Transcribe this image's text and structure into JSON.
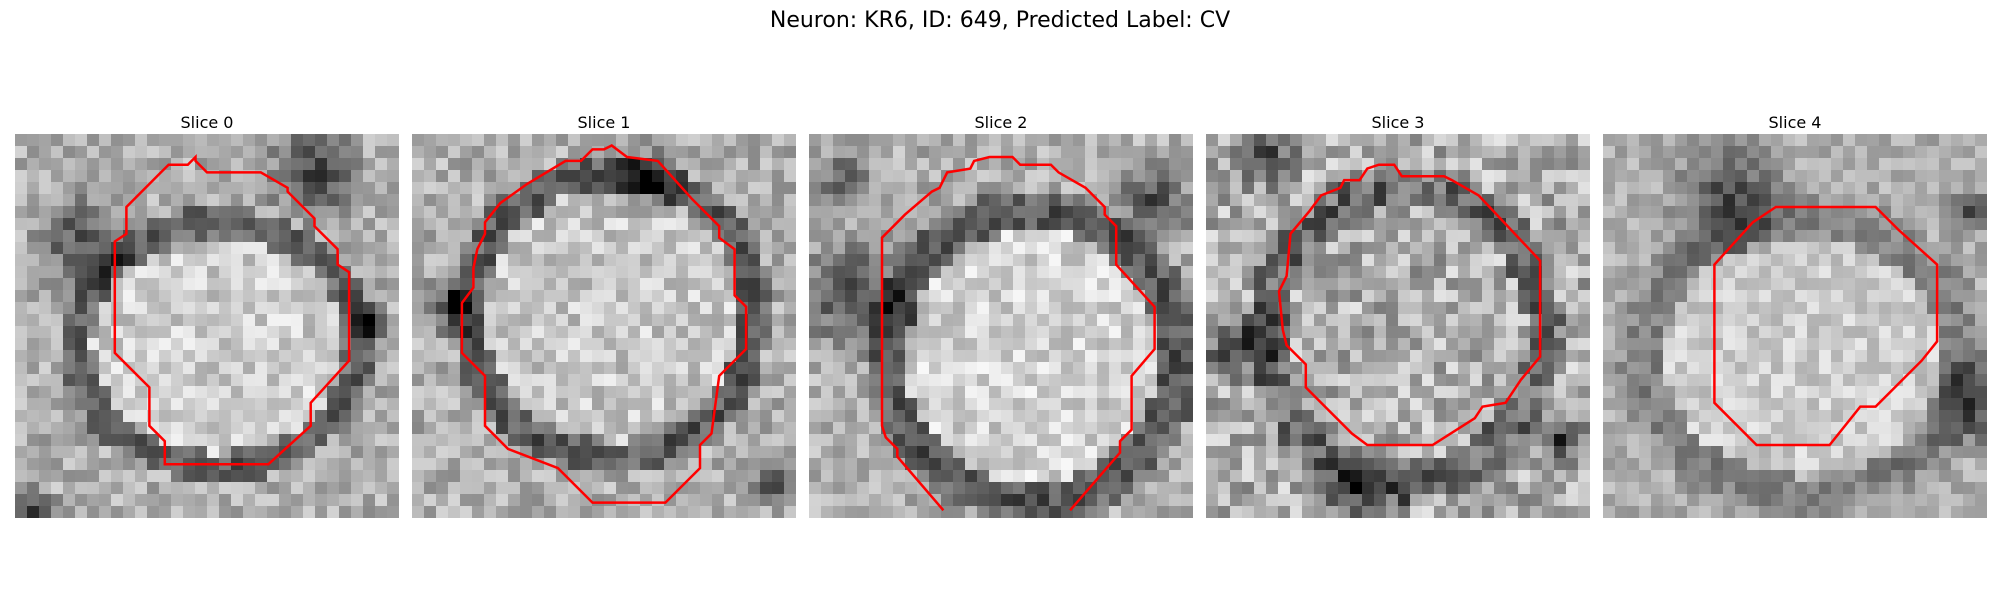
{
  "figure": {
    "title": "Neuron: KR6, ID: 649, Predicted Label: CV"
  },
  "panels": [
    {
      "title": "Slice 0"
    },
    {
      "title": "Slice 1"
    },
    {
      "title": "Slice 2"
    },
    {
      "title": "Slice 3"
    },
    {
      "title": "Slice 4"
    }
  ],
  "colors": {
    "contour": "#ff0000",
    "background": "#ffffff"
  },
  "image": {
    "type": "grayscale-em-crops",
    "grid": 32
  }
}
